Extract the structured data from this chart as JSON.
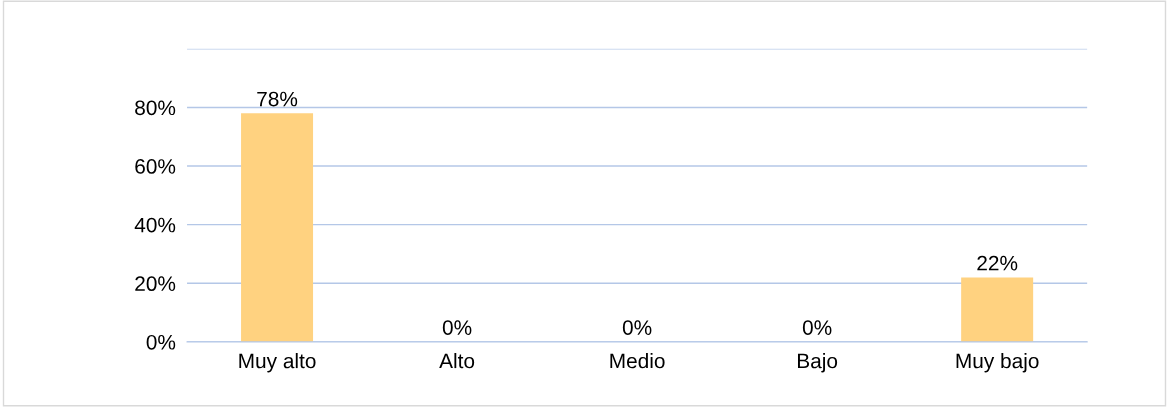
{
  "chart_data": {
    "type": "bar",
    "categories": [
      "Muy alto",
      "Alto",
      "Medio",
      "Bajo",
      "Muy bajo"
    ],
    "values": [
      78,
      0,
      0,
      0,
      22
    ],
    "value_labels": [
      "78%",
      "0%",
      "0%",
      "0%",
      "22%"
    ],
    "color": "#ffd280",
    "ylim": [
      0,
      100
    ],
    "yticks": [
      {
        "value": 0,
        "label": "0%"
      },
      {
        "value": 20,
        "label": "20%"
      },
      {
        "value": 40,
        "label": "40%"
      },
      {
        "value": 60,
        "label": "60%"
      },
      {
        "value": 80,
        "label": "80%"
      },
      {
        "value": 100,
        "label": null
      }
    ],
    "grid": "y"
  }
}
